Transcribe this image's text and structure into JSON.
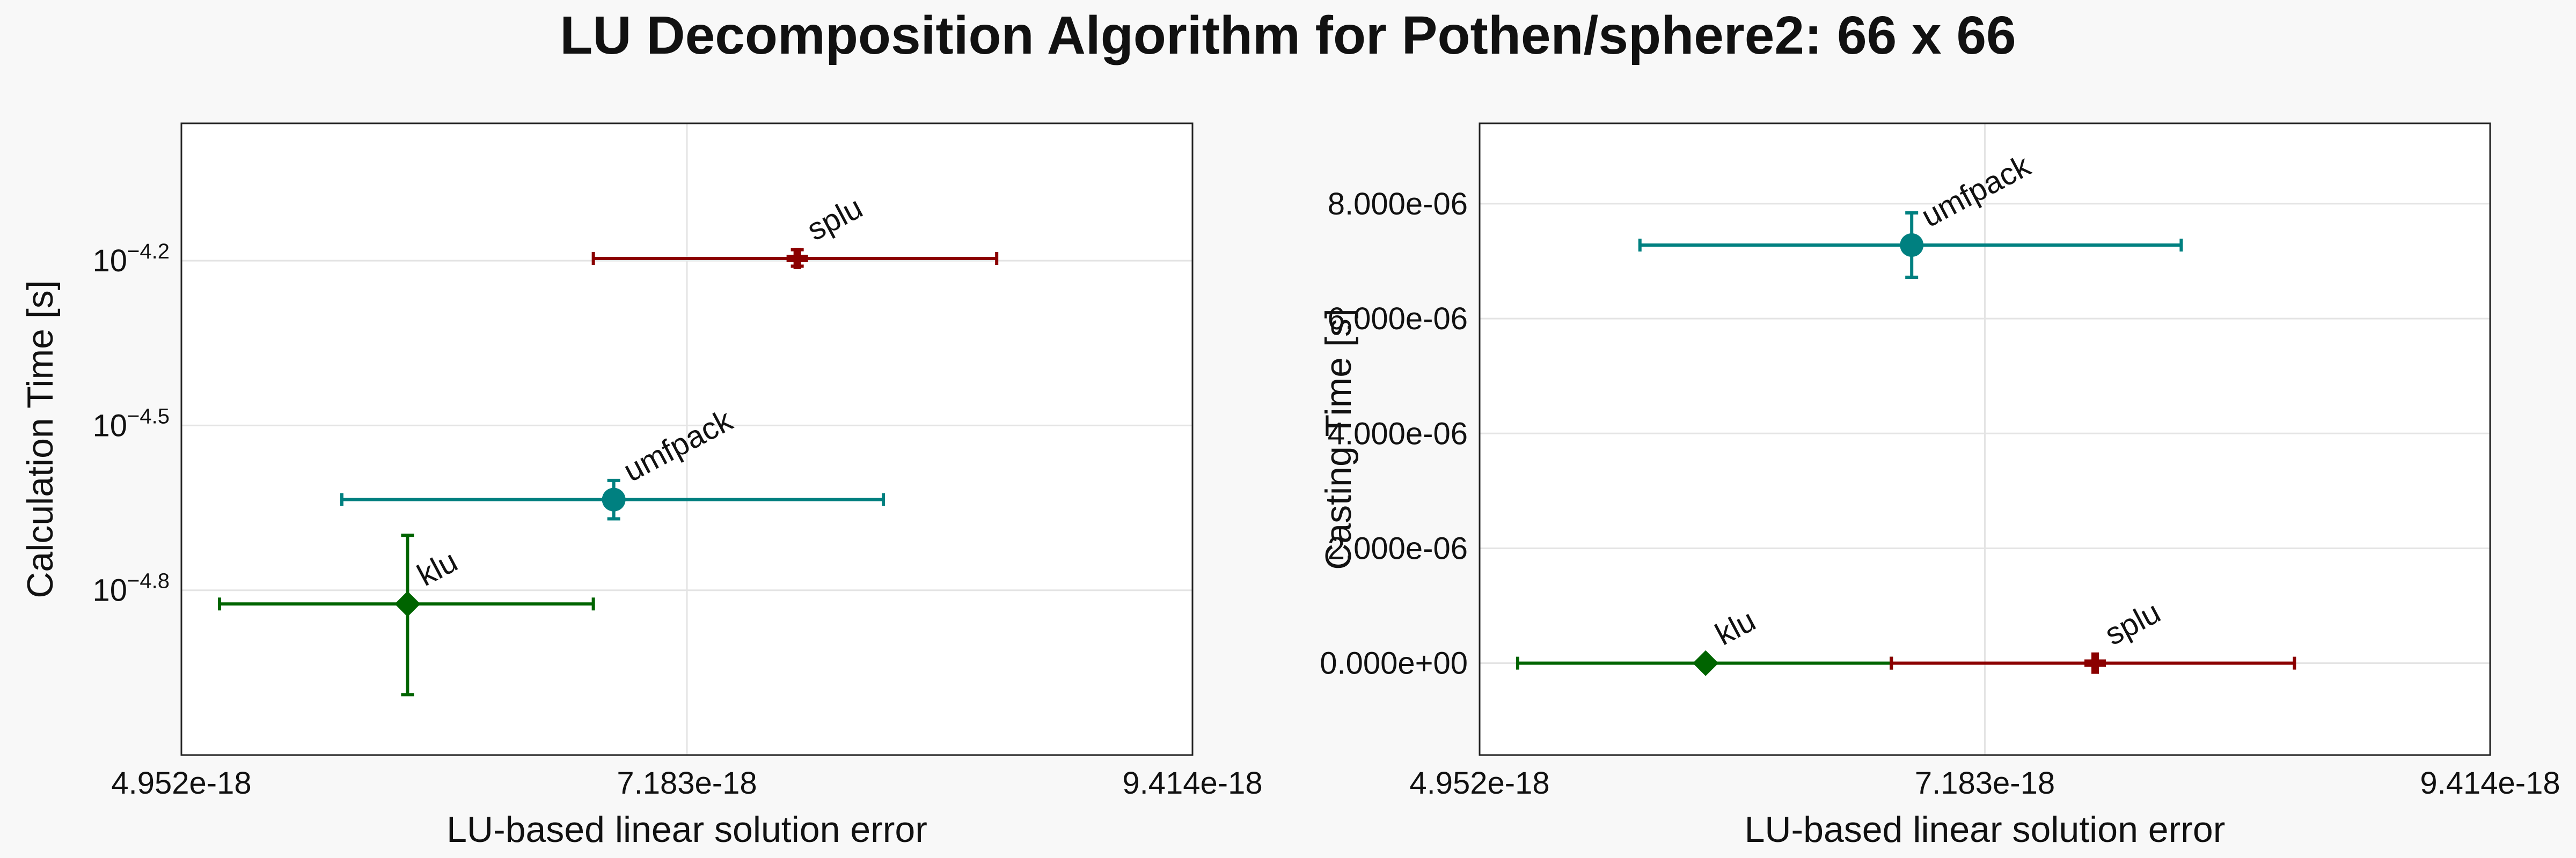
{
  "title": "LU Decomposition Algorithm for Pothen/sphere2: 66 x 66",
  "chart_data": [
    {
      "type": "scatter",
      "xlabel": "LU-based linear solution error",
      "ylabel": "Calculation Time [s]",
      "xlim": [
        4.952e-18,
        9.414e-18
      ],
      "xticks": [
        "4.952e-18",
        "7.183e-18",
        "9.414e-18"
      ],
      "ylog": true,
      "ylim_log10": [
        -5.1,
        -3.95
      ],
      "yticks": [
        {
          "base": "10",
          "exp": "−4.2",
          "log10": -4.2
        },
        {
          "base": "10",
          "exp": "−4.5",
          "log10": -4.5
        },
        {
          "base": "10",
          "exp": "−4.8",
          "log10": -4.8
        }
      ],
      "grid": true,
      "series": [
        {
          "name": "splu",
          "color": "#8b0000",
          "marker": "plus",
          "x": 7.67e-18,
          "xerr": [
            6.77e-18,
            8.55e-18
          ],
          "y_log10": -4.196,
          "yerr_log10": [
            -4.21,
            -4.18
          ]
        },
        {
          "name": "umfpack",
          "color": "#008080",
          "marker": "circle",
          "x": 6.86e-18,
          "xerr": [
            5.66e-18,
            8.05e-18
          ],
          "y_log10": -4.635,
          "yerr_log10": [
            -4.67,
            -4.6
          ]
        },
        {
          "name": "klu",
          "color": "#006400",
          "marker": "diamond",
          "x": 5.95e-18,
          "xerr": [
            5.12e-18,
            6.77e-18
          ],
          "y_log10": -4.825,
          "yerr_log10": [
            -4.99,
            -4.7
          ]
        }
      ]
    },
    {
      "type": "scatter",
      "xlabel": "LU-based linear solution error",
      "ylabel": "Casting Time [s]",
      "xlim": [
        4.952e-18,
        9.414e-18
      ],
      "xticks": [
        "4.952e-18",
        "7.183e-18",
        "9.414e-18"
      ],
      "ylim": [
        -1.6e-06,
        9.4e-06
      ],
      "yticks": [
        {
          "label": "0.000e+00",
          "value": 0
        },
        {
          "label": "2.000e-06",
          "value": 2e-06
        },
        {
          "label": "4.000e-06",
          "value": 4e-06
        },
        {
          "label": "6.000e-06",
          "value": 6e-06
        },
        {
          "label": "8.000e-06",
          "value": 8e-06
        }
      ],
      "grid": true,
      "series": [
        {
          "name": "umfpack",
          "color": "#008080",
          "marker": "circle",
          "x": 6.86e-18,
          "xerr": [
            5.66e-18,
            8.05e-18
          ],
          "y": 7.28e-06,
          "yerr": [
            6.72e-06,
            7.84e-06
          ]
        },
        {
          "name": "klu",
          "color": "#006400",
          "marker": "diamond",
          "x": 5.95e-18,
          "xerr": [
            5.12e-18,
            6.77e-18
          ],
          "y": 0,
          "yerr": [
            0,
            0
          ]
        },
        {
          "name": "splu",
          "color": "#8b0000",
          "marker": "plus",
          "x": 7.67e-18,
          "xerr": [
            6.77e-18,
            8.55e-18
          ],
          "y": 0,
          "yerr": [
            0,
            0
          ]
        }
      ]
    }
  ]
}
